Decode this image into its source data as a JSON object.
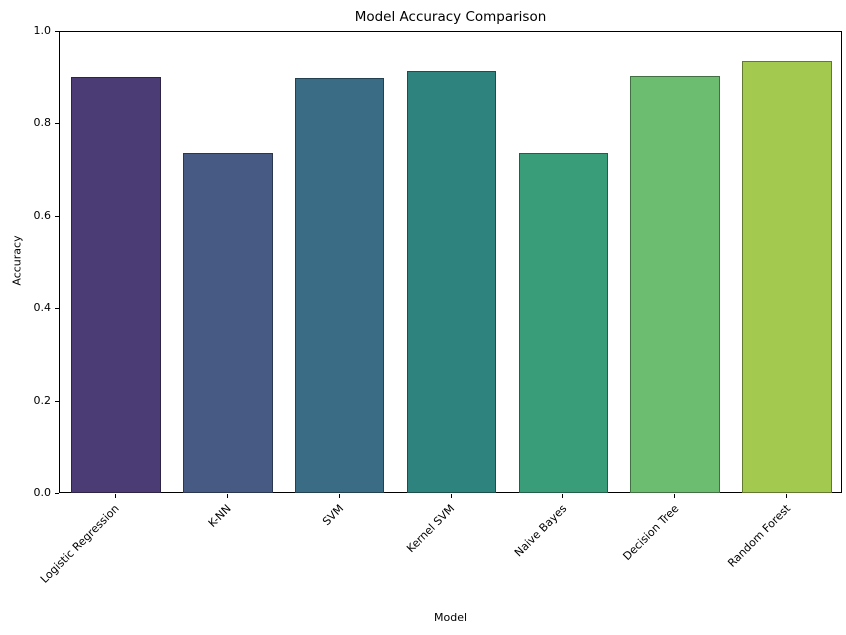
{
  "chart_data": {
    "type": "bar",
    "title": "Model Accuracy Comparison",
    "xlabel": "Model",
    "ylabel": "Accuracy",
    "categories": [
      "Logistic Regression",
      "K-NN",
      "SVM",
      "Kernel SVM",
      "Naive Bayes",
      "Decision Tree",
      "Random Forest"
    ],
    "values": [
      0.9,
      0.735,
      0.898,
      0.913,
      0.735,
      0.903,
      0.935
    ],
    "bar_colors": [
      "#4b3c75",
      "#475a84",
      "#3a6d85",
      "#2e837e",
      "#3a9d7a",
      "#6cbd70",
      "#a3c94e"
    ],
    "bar_edge_colors": [
      "#2d2446",
      "#2b364f",
      "#234150",
      "#1c4f4c",
      "#235e49",
      "#417143",
      "#62792f"
    ],
    "ylim": [
      0.0,
      1.0
    ],
    "yticks": [
      "0.0",
      "0.2",
      "0.4",
      "0.6",
      "0.8",
      "1.0"
    ],
    "bar_width_fraction": 0.8,
    "xtick_rotation_deg": 45,
    "grid": false,
    "legend": "none",
    "background_color": "#ffffff",
    "spine_color": "#000000"
  }
}
